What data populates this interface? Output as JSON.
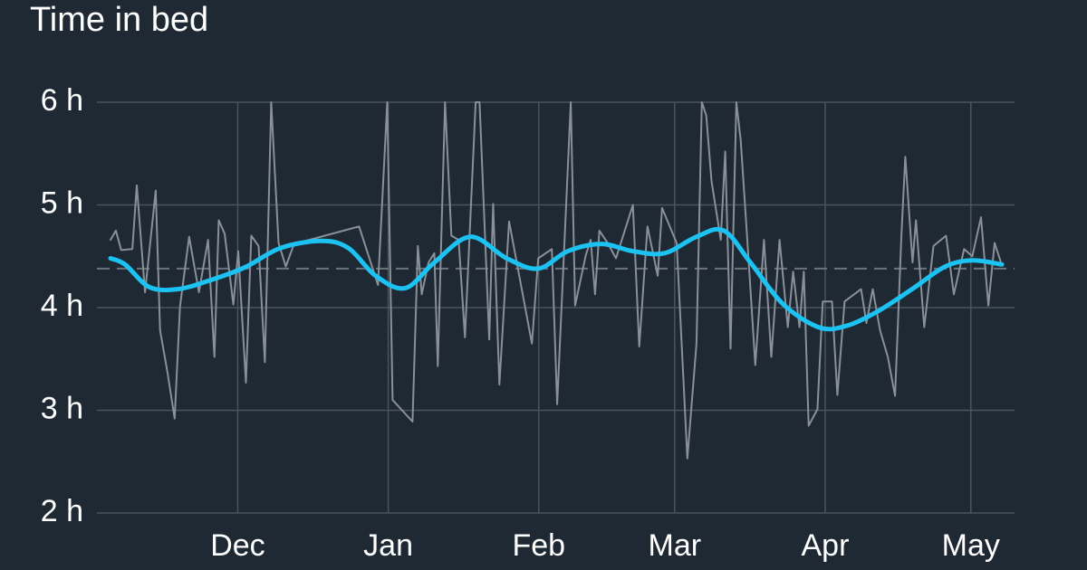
{
  "chart_data": {
    "type": "line",
    "title": "Time in bed",
    "xlim": [
      0,
      189
    ],
    "xticks": [
      {
        "value": 29,
        "label": "Dec"
      },
      {
        "value": 60,
        "label": "Jan"
      },
      {
        "value": 91,
        "label": "Feb"
      },
      {
        "value": 119,
        "label": "Mar"
      },
      {
        "value": 150,
        "label": "Apr"
      },
      {
        "value": 180,
        "label": "May"
      }
    ],
    "ylim": [
      2,
      6
    ],
    "yticks": [
      {
        "value": 2,
        "label": "2 h"
      },
      {
        "value": 3,
        "label": "3 h"
      },
      {
        "value": 4,
        "label": "4 h"
      },
      {
        "value": 5,
        "label": "5 h"
      },
      {
        "value": 6,
        "label": "6 h"
      }
    ],
    "grid": true,
    "reference_line": {
      "value": 4.38,
      "color": "#6b737c"
    },
    "series": [
      {
        "color": "#8a9099",
        "smooth": false,
        "x": [
          2.8,
          3.9,
          5.0,
          7.3,
          8.2,
          9.9,
          12.1,
          13.0,
          14.5,
          16.0,
          17.1,
          19.0,
          21.0,
          22.9,
          24.2,
          25.1,
          26.3,
          28.1,
          29.1,
          30.7,
          31.8,
          33.3,
          34.6,
          35.9,
          37.4,
          38.9,
          40.6,
          54.0,
          57.9,
          59.8,
          60.9,
          65.0,
          66.1,
          66.9,
          68.3,
          69.5,
          70.2,
          71.7,
          73.0,
          74.5,
          75.8,
          78.0,
          78.8,
          80.8,
          81.6,
          82.9,
          84.9,
          89.6,
          90.9,
          93.7,
          94.8,
          97.6,
          98.5,
          100.7,
          101.7,
          102.6,
          103.5,
          105.2,
          106.9,
          110.4,
          111.7,
          113.4,
          115.5,
          116.4,
          119.4,
          121.6,
          123.5,
          124.6,
          125.5,
          126.6,
          128.5,
          129.4,
          130.5,
          131.7,
          132.6,
          133.9,
          135.6,
          137.4,
          138.9,
          140.6,
          142.3,
          143.4,
          144.7,
          145.6,
          146.6,
          148.4,
          149.5,
          151.4,
          152.5,
          154.0,
          157.4,
          158.5,
          159.8,
          161.3,
          162.9,
          164.4,
          165.7,
          166.5,
          168.0,
          168.7,
          170.4,
          172.3,
          174.9,
          176.5,
          178.6,
          180.3,
          182.1,
          183.6,
          184.9,
          186.2
        ],
        "values": [
          4.66,
          4.75,
          4.56,
          4.57,
          5.19,
          4.15,
          5.14,
          3.78,
          3.38,
          2.92,
          4.01,
          4.69,
          4.15,
          4.66,
          3.52,
          4.85,
          4.72,
          4.03,
          4.55,
          3.27,
          4.7,
          4.6,
          3.47,
          6.0,
          4.63,
          4.4,
          4.62,
          4.79,
          4.22,
          6.0,
          3.1,
          2.89,
          4.6,
          4.13,
          4.44,
          4.53,
          3.43,
          6.0,
          4.7,
          4.66,
          3.71,
          6.0,
          6.0,
          3.69,
          5.01,
          3.25,
          4.84,
          3.65,
          4.48,
          4.57,
          3.06,
          6.0,
          4.02,
          4.51,
          4.66,
          4.13,
          4.75,
          4.63,
          4.48,
          5.0,
          3.62,
          4.79,
          4.31,
          4.97,
          4.63,
          2.53,
          3.65,
          6.0,
          5.87,
          5.23,
          4.66,
          5.52,
          3.6,
          6.0,
          5.63,
          4.7,
          3.44,
          4.66,
          3.52,
          4.66,
          3.81,
          4.35,
          3.81,
          4.35,
          2.85,
          3.01,
          4.06,
          4.06,
          3.15,
          4.06,
          4.18,
          3.85,
          4.18,
          3.78,
          3.52,
          3.14,
          4.7,
          5.47,
          4.44,
          4.85,
          3.81,
          4.6,
          4.7,
          4.13,
          4.57,
          4.5,
          4.88,
          4.02,
          4.63,
          4.44
        ]
      },
      {
        "color": "#1cc3f2",
        "smooth": true,
        "x": [
          2.8,
          5.8,
          10.8,
          16.6,
          22.9,
          30.4,
          37.8,
          46.2,
          51.8,
          57.4,
          63.5,
          69.5,
          76.9,
          84.4,
          90.9,
          97.0,
          103.9,
          110.4,
          116.9,
          123.5,
          129.1,
          134.6,
          141.2,
          148.6,
          154.2,
          160.7,
          168.2,
          174.7,
          180.3,
          186.4
        ],
        "values": [
          4.48,
          4.42,
          4.2,
          4.18,
          4.26,
          4.39,
          4.58,
          4.65,
          4.58,
          4.31,
          4.19,
          4.44,
          4.69,
          4.48,
          4.38,
          4.55,
          4.62,
          4.55,
          4.53,
          4.69,
          4.75,
          4.44,
          4.04,
          3.81,
          3.82,
          3.96,
          4.19,
          4.4,
          4.46,
          4.42
        ]
      }
    ]
  }
}
